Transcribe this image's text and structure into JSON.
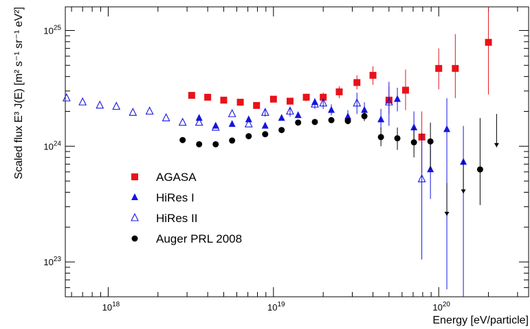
{
  "chart_data": {
    "type": "scatter",
    "xlabel": "Energy [eV/particle]",
    "ylabel": "Scaled flux   E³ J(E) [m² s⁻¹ sr⁻¹ eV²]",
    "x_scale": "log",
    "y_scale": "log",
    "xlim": [
      5.5e+17,
      3.5e+20
    ],
    "ylim": [
      5e+22,
      1.6e+25
    ],
    "grid": false,
    "legend_position": "left-middle",
    "x_ticks": [
      {
        "value": 1e+18,
        "base": "10",
        "exp": "18"
      },
      {
        "value": 1e+19,
        "base": "10",
        "exp": "19"
      },
      {
        "value": 1e+20,
        "base": "10",
        "exp": "20"
      }
    ],
    "y_ticks": [
      {
        "value": 1e+23,
        "base": "10",
        "exp": "23"
      },
      {
        "value": 1e+24,
        "base": "10",
        "exp": "24"
      },
      {
        "value": 1e+25,
        "base": "10",
        "exp": "25"
      }
    ],
    "series": [
      {
        "name": "AGASA",
        "marker": "square",
        "color": "#e8121b",
        "points": [
          {
            "x": 3.2e+18,
            "y": 2.75e+24
          },
          {
            "x": 4e+18,
            "y": 2.65e+24
          },
          {
            "x": 5e+18,
            "y": 2.5e+24
          },
          {
            "x": 6.3e+18,
            "y": 2.4e+24
          },
          {
            "x": 7.9e+18,
            "y": 2.25e+24
          },
          {
            "x": 1e+19,
            "y": 2.55e+24
          },
          {
            "x": 1.26e+19,
            "y": 2.45e+24
          },
          {
            "x": 1.58e+19,
            "y": 2.65e+24,
            "ylo": 2.45e+24,
            "yhi": 2.85e+24
          },
          {
            "x": 2e+19,
            "y": 2.65e+24,
            "ylo": 2.4e+24,
            "yhi": 2.9e+24
          },
          {
            "x": 2.5e+19,
            "y": 2.95e+24,
            "ylo": 2.6e+24,
            "yhi": 3.3e+24
          },
          {
            "x": 3.2e+19,
            "y": 3.55e+24,
            "ylo": 3.1e+24,
            "yhi": 4.1e+24
          },
          {
            "x": 4e+19,
            "y": 4.1e+24,
            "ylo": 3.4e+24,
            "yhi": 4.9e+24
          },
          {
            "x": 5e+19,
            "y": 2.5e+24,
            "ylo": 1.9e+24,
            "yhi": 3.3e+24
          },
          {
            "x": 6.3e+19,
            "y": 3.05e+24,
            "ylo": 2.05e+24,
            "yhi": 4.6e+24
          },
          {
            "x": 7.9e+19,
            "y": 1.2e+24,
            "ylo": 6e+23,
            "yhi": 2e+24
          },
          {
            "x": 1e+20,
            "y": 4.7e+24,
            "ylo": 3.1e+24,
            "yhi": 7e+24
          },
          {
            "x": 1.26e+20,
            "y": 4.7e+24,
            "ylo": 2.6e+24,
            "yhi": 9.3e+24
          },
          {
            "x": 2e+20,
            "y": 7.9e+24,
            "ylo": 2.8e+24,
            "yhi": 1.6e+25
          }
        ]
      },
      {
        "name": "HiRes I",
        "marker": "triangle",
        "color": "#1515e0",
        "points": [
          {
            "x": 3.55e+18,
            "y": 1.75e+24
          },
          {
            "x": 4.47e+18,
            "y": 1.5e+24
          },
          {
            "x": 5.62e+18,
            "y": 1.55e+24
          },
          {
            "x": 7.08e+18,
            "y": 1.7e+24
          },
          {
            "x": 8.91e+18,
            "y": 1.5e+24
          },
          {
            "x": 1.12e+19,
            "y": 1.75e+24
          },
          {
            "x": 1.41e+19,
            "y": 1.85e+24
          },
          {
            "x": 1.78e+19,
            "y": 2.4e+24,
            "ylo": 2.2e+24,
            "yhi": 2.6e+24
          },
          {
            "x": 2.24e+19,
            "y": 2.05e+24,
            "ylo": 1.85e+24,
            "yhi": 2.3e+24
          },
          {
            "x": 2.82e+19,
            "y": 1.8e+24,
            "ylo": 1.6e+24,
            "yhi": 2.05e+24
          },
          {
            "x": 3.55e+19,
            "y": 2.05e+24,
            "ylo": 1.75e+24,
            "yhi": 2.4e+24
          },
          {
            "x": 4.47e+19,
            "y": 1.7e+24,
            "ylo": 1.4e+24,
            "yhi": 2.1e+24
          },
          {
            "x": 5.62e+19,
            "y": 2.55e+24,
            "ylo": 2e+24,
            "yhi": 3.2e+24
          },
          {
            "x": 7.08e+19,
            "y": 1.45e+24,
            "ylo": 1.05e+24,
            "yhi": 2e+24
          },
          {
            "x": 8.91e+19,
            "y": 6.3e+23,
            "ylo": 3.5e+23,
            "yhi": 1.15e+24
          },
          {
            "x": 1.12e+20,
            "y": 1.4e+24,
            "ylo": 5.8e+22,
            "yhi": 2.6e+24
          },
          {
            "x": 1.41e+20,
            "y": 7.3e+23,
            "ylo": 5e+22,
            "yhi": 1.5e+24
          }
        ]
      },
      {
        "name": "HiRes II",
        "marker": "open-triangle",
        "color": "#1515e0",
        "points": [
          {
            "x": 5.6e+17,
            "y": 2.6e+24
          },
          {
            "x": 7e+17,
            "y": 2.4e+24
          },
          {
            "x": 8.9e+17,
            "y": 2.25e+24
          },
          {
            "x": 1.12e+18,
            "y": 2.2e+24
          },
          {
            "x": 1.41e+18,
            "y": 1.95e+24
          },
          {
            "x": 1.78e+18,
            "y": 2e+24
          },
          {
            "x": 2.24e+18,
            "y": 1.75e+24
          },
          {
            "x": 2.82e+18,
            "y": 1.6e+24
          },
          {
            "x": 3.55e+18,
            "y": 1.6e+24
          },
          {
            "x": 4.47e+18,
            "y": 1.45e+24
          },
          {
            "x": 5.62e+18,
            "y": 1.9e+24
          },
          {
            "x": 7.08e+18,
            "y": 1.55e+24
          },
          {
            "x": 8.91e+18,
            "y": 1.95e+24,
            "ylo": 1.8e+24,
            "yhi": 2.1e+24
          },
          {
            "x": 1.26e+19,
            "y": 2e+24,
            "ylo": 1.8e+24,
            "yhi": 2.2e+24
          },
          {
            "x": 1.78e+19,
            "y": 2.3e+24,
            "ylo": 2.1e+24,
            "yhi": 2.55e+24
          },
          {
            "x": 2e+19,
            "y": 2.35e+24,
            "ylo": 2.1e+24,
            "yhi": 2.6e+24
          },
          {
            "x": 3.2e+19,
            "y": 2.35e+24,
            "ylo": 1.9e+24,
            "yhi": 2.9e+24
          },
          {
            "x": 5e+19,
            "y": 2.4e+24,
            "ylo": 1.5e+24,
            "yhi": 3.6e+24
          },
          {
            "x": 7.9e+19,
            "y": 5.2e+23,
            "ylo": 1.05e+23,
            "yhi": 1.3e+24
          }
        ]
      },
      {
        "name": "Auger PRL 2008",
        "marker": "circle",
        "color": "#000000",
        "points": [
          {
            "x": 2.82e+18,
            "y": 1.13e+24
          },
          {
            "x": 3.55e+18,
            "y": 1.04e+24
          },
          {
            "x": 4.47e+18,
            "y": 1.04e+24
          },
          {
            "x": 5.62e+18,
            "y": 1.12e+24
          },
          {
            "x": 7.08e+18,
            "y": 1.22e+24
          },
          {
            "x": 8.91e+18,
            "y": 1.27e+24
          },
          {
            "x": 1.12e+19,
            "y": 1.38e+24
          },
          {
            "x": 1.41e+19,
            "y": 1.6e+24
          },
          {
            "x": 1.78e+19,
            "y": 1.62e+24
          },
          {
            "x": 2.24e+19,
            "y": 1.68e+24
          },
          {
            "x": 2.82e+19,
            "y": 1.65e+24,
            "ylo": 1.55e+24,
            "yhi": 1.76e+24
          },
          {
            "x": 3.55e+19,
            "y": 1.82e+24,
            "ylo": 1.65e+24,
            "yhi": 2e+24
          },
          {
            "x": 4.47e+19,
            "y": 1.2e+24,
            "ylo": 1e+24,
            "yhi": 1.45e+24
          },
          {
            "x": 5.62e+19,
            "y": 1.17e+24,
            "ylo": 9.3e+23,
            "yhi": 1.45e+24
          },
          {
            "x": 7.08e+19,
            "y": 1.08e+24,
            "ylo": 8e+23,
            "yhi": 1.45e+24
          },
          {
            "x": 8.91e+19,
            "y": 1.1e+24,
            "ylo": 6.3e+23,
            "yhi": 1.6e+24
          },
          {
            "x": 1.78e+20,
            "y": 6.3e+23,
            "ylo": 3.1e+23,
            "yhi": 1.75e+24
          }
        ],
        "upper_limits": [
          {
            "x": 1.12e+20,
            "y": 2.5e+23,
            "yhi": 4.8e+23
          },
          {
            "x": 1.41e+20,
            "y": 3.9e+23,
            "yhi": 7.5e+23
          },
          {
            "x": 2.24e+20,
            "y": 9.8e+23,
            "yhi": 1.9e+24
          }
        ]
      }
    ]
  }
}
